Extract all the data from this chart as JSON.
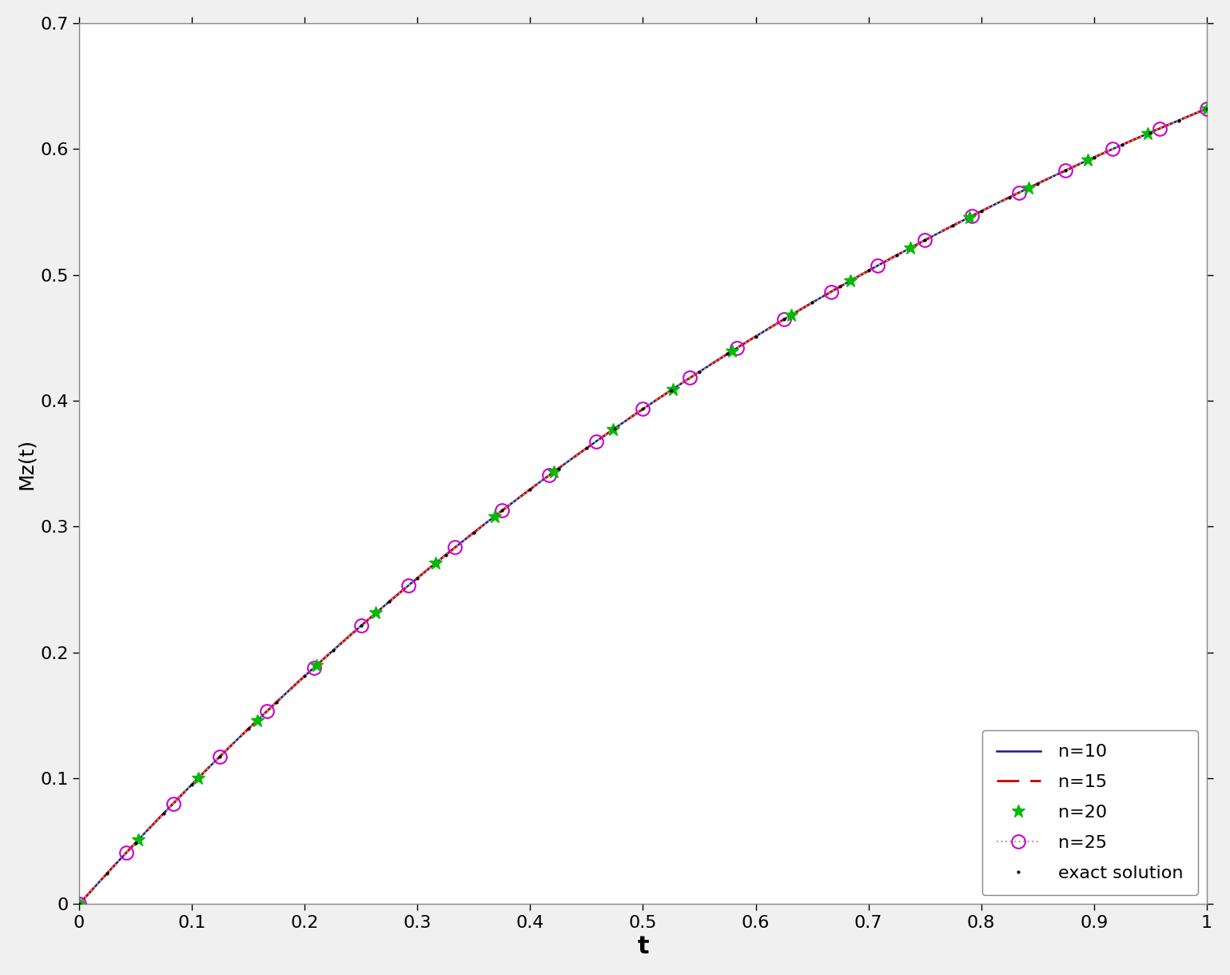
{
  "t_min": 0.0,
  "t_max": 1.0,
  "y_min": 0.0,
  "y_max": 0.7,
  "xlabel": "t",
  "ylabel": "Mz(t)",
  "n10_color": "#1a1a7e",
  "n15_color": "#cc0000",
  "n20_color": "#00bb00",
  "n25_dot_color": "#aaaaaa",
  "n25_marker_color": "#cc00cc",
  "exact_color": "#000000",
  "bg_color": "#ffffff",
  "legend_entries": [
    "n=10",
    "n=15",
    "n=20",
    "n=25",
    "exact solution"
  ],
  "legend_loc": "lower right",
  "n_points_dense": 400,
  "n20_marker_n": 20,
  "n25_marker_n": 25,
  "exact_marker_n": 41,
  "xlabel_fontsize": 22,
  "ylabel_fontsize": 18,
  "tick_fontsize": 16,
  "legend_fontsize": 16,
  "linewidth_n10": 1.8,
  "linewidth_n15": 2.0,
  "linewidth_n25_dot": 1.5,
  "n20_markersize": 12,
  "n25_markersize": 12,
  "exact_markersize": 4,
  "xticks": [
    0.0,
    0.1,
    0.2,
    0.3,
    0.4,
    0.5,
    0.6,
    0.7,
    0.8,
    0.9,
    1.0
  ],
  "yticks": [
    0.0,
    0.1,
    0.2,
    0.3,
    0.4,
    0.5,
    0.6,
    0.7
  ]
}
